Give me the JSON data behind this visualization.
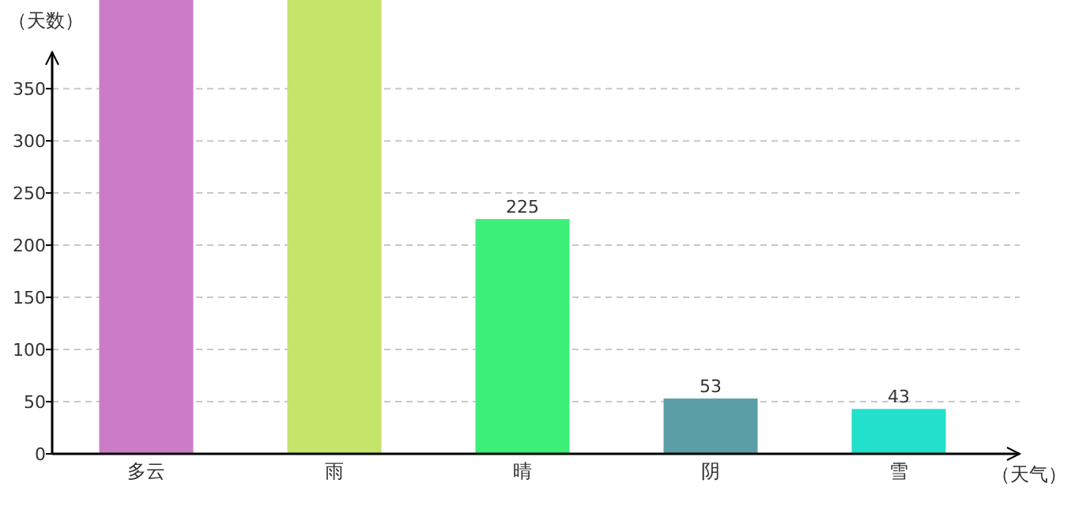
{
  "chart_data": {
    "type": "bar",
    "ylabel": "（天数）",
    "xlabel": "（天气）",
    "categories": [
      "多云",
      "雨",
      "晴",
      "阴",
      "雪"
    ],
    "values": [
      435,
      435,
      225,
      53,
      43
    ],
    "colors": [
      "#cb7bc8",
      "#c5e46a",
      "#3cef78",
      "#5b9ea6",
      "#22e0cc"
    ],
    "value_labels": [
      null,
      null,
      "225",
      "53",
      "43"
    ],
    "ylim": [
      0,
      435
    ],
    "yticks": [
      0,
      50,
      100,
      150,
      200,
      250,
      300,
      350
    ],
    "grid": "y"
  }
}
